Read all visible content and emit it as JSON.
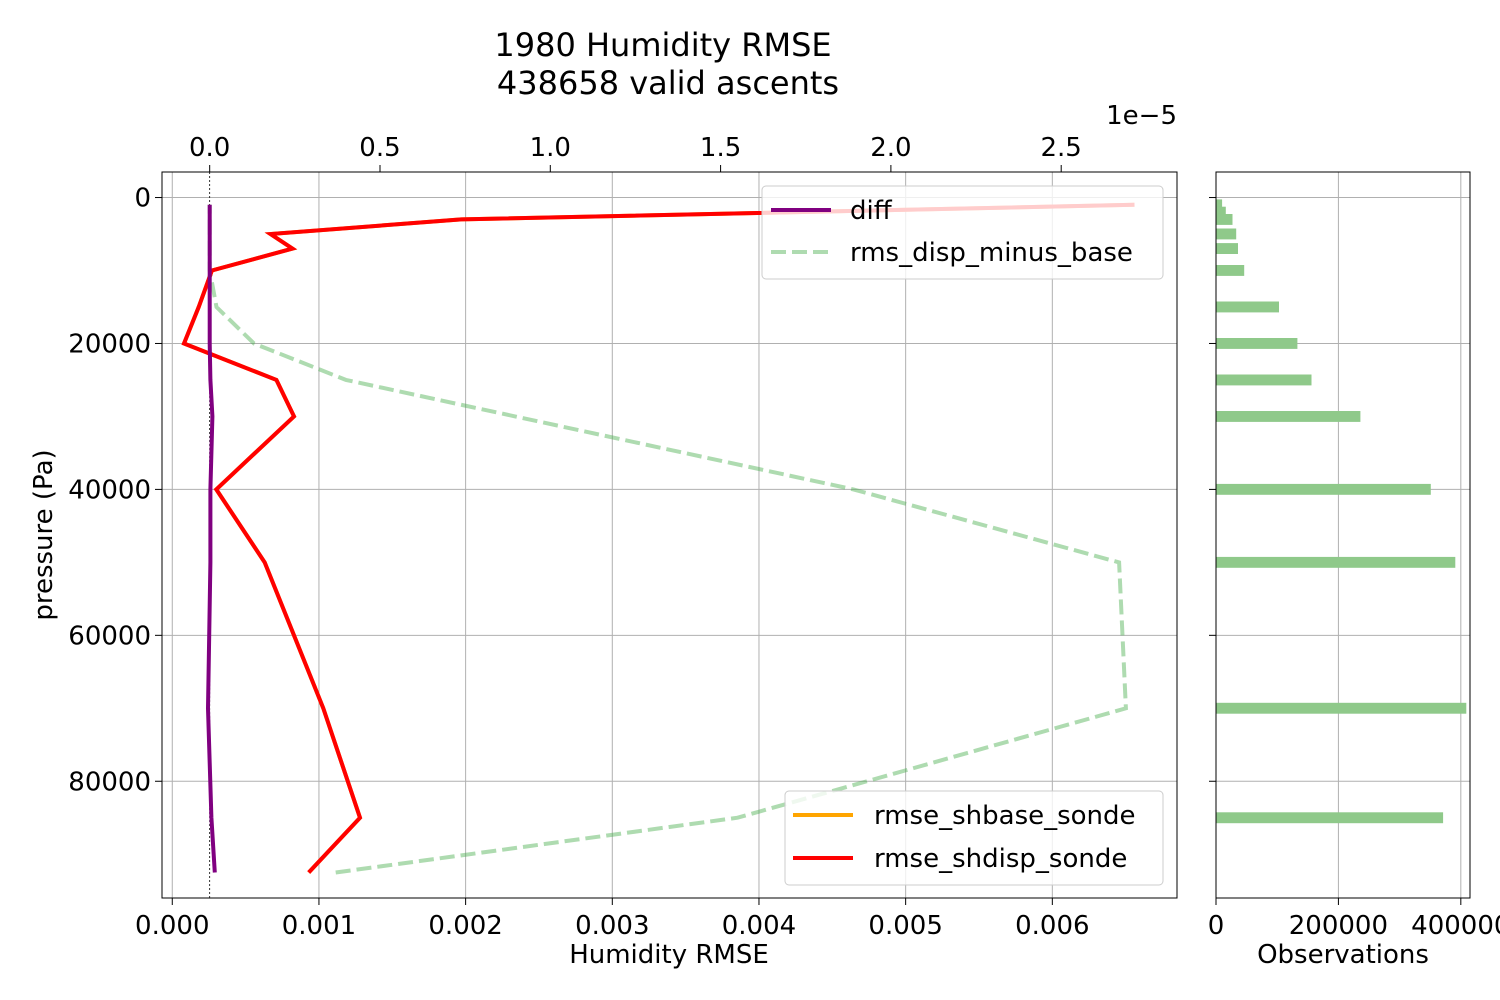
{
  "chart_data": [
    {
      "type": "line",
      "title_line1": "1980 Humidity RMSE",
      "title_line2": "438658 valid ascents",
      "xlabel": "Humidity RMSE",
      "ylabel": "pressure (Pa)",
      "xlim": [
        -7e-05,
        0.00685
      ],
      "ylim": [
        96000,
        -3500
      ],
      "y_inverted": true,
      "grid": true,
      "x_ticks": [
        0.0,
        0.001,
        0.002,
        0.003,
        0.004,
        0.005,
        0.006
      ],
      "x_tick_labels": [
        "0.000",
        "0.001",
        "0.002",
        "0.003",
        "0.004",
        "0.005",
        "0.006"
      ],
      "y_ticks": [
        0,
        20000,
        40000,
        60000,
        80000
      ],
      "y_tick_labels": [
        "0",
        "20000",
        "40000",
        "60000",
        "80000"
      ],
      "top_axis": {
        "label": "diff",
        "offset_text": "1e−5",
        "xlim": [
          -0.14,
          2.84
        ],
        "ticks": [
          0.0,
          0.5,
          1.0,
          1.5,
          2.0,
          2.5
        ],
        "tick_labels": [
          "0.0",
          "0.5",
          "1.0",
          "1.5",
          "2.0",
          "2.5"
        ]
      },
      "legend_upper_right": [
        "diff",
        "rms_disp_minus_base"
      ],
      "legend_lower_right": [
        "rmse_shbase_sonde",
        "rmse_shdisp_sonde"
      ],
      "series": [
        {
          "name": "rmse_shbase_sonde",
          "axis": "bottom",
          "color": "#ffa500",
          "style": "solid",
          "points": [
            [
              0.00093,
              92500
            ],
            [
              0.00128,
              85000
            ],
            [
              0.00103,
              70000
            ],
            [
              0.00063,
              50000
            ],
            [
              0.0003,
              40000
            ],
            [
              0.00083,
              30000
            ],
            [
              0.00071,
              25000
            ],
            [
              8e-05,
              20000
            ],
            [
              0.00018,
              15000
            ],
            [
              0.00027,
              10000
            ],
            [
              0.00082,
              7000
            ],
            [
              0.00067,
              5000
            ],
            [
              0.00197,
              3000
            ],
            [
              0.00656,
              1000
            ]
          ]
        },
        {
          "name": "rmse_shdisp_sonde",
          "axis": "bottom",
          "color": "#ff0000",
          "style": "solid",
          "points": [
            [
              0.00093,
              92500
            ],
            [
              0.00128,
              85000
            ],
            [
              0.00103,
              70000
            ],
            [
              0.00063,
              50000
            ],
            [
              0.0003,
              40000
            ],
            [
              0.00083,
              30000
            ],
            [
              0.00071,
              25000
            ],
            [
              8e-05,
              20000
            ],
            [
              0.00018,
              15000
            ],
            [
              0.00027,
              10000
            ],
            [
              0.00082,
              7000
            ],
            [
              0.00067,
              5000
            ],
            [
              0.00197,
              3000
            ],
            [
              0.00656,
              1000
            ]
          ]
        },
        {
          "name": "diff",
          "axis": "top",
          "color": "#800080",
          "style": "solid",
          "points": [
            [
              0.015,
              92500
            ],
            [
              0.005,
              85000
            ],
            [
              -0.005,
              70000
            ],
            [
              0.002,
              50000
            ],
            [
              0.002,
              40000
            ],
            [
              0.008,
              30000
            ],
            [
              0.002,
              25000
            ],
            [
              0.0,
              20000
            ],
            [
              0.0,
              15000
            ],
            [
              0.0,
              10000
            ],
            [
              0.0,
              7000
            ],
            [
              0.0,
              5000
            ],
            [
              0.0,
              3000
            ],
            [
              0.0,
              1000
            ]
          ]
        },
        {
          "name": "rms_disp_minus_base",
          "axis": "top",
          "color": "#4caf50",
          "style": "dashed",
          "opacity": 0.45,
          "points": [
            [
              0.37,
              92500
            ],
            [
              1.55,
              85000
            ],
            [
              2.69,
              70000
            ],
            [
              2.67,
              50000
            ],
            [
              1.89,
              40000
            ],
            [
              0.4,
              25000
            ],
            [
              0.13,
              20000
            ],
            [
              0.02,
              15000
            ],
            [
              0.0,
              10000
            ],
            [
              0.0,
              5000
            ],
            [
              0.0,
              1000
            ]
          ]
        }
      ]
    },
    {
      "type": "bar",
      "orientation": "horizontal",
      "xlabel": "Observations",
      "xlim": [
        0,
        415000
      ],
      "x_ticks": [
        0,
        200000,
        400000
      ],
      "x_tick_labels": [
        "0",
        "200000",
        "400000"
      ],
      "color": "#8fc98a",
      "bars": [
        {
          "pressure": 1000,
          "count": 10000
        },
        {
          "pressure": 2000,
          "count": 16000
        },
        {
          "pressure": 3000,
          "count": 27000
        },
        {
          "pressure": 5000,
          "count": 33000
        },
        {
          "pressure": 7000,
          "count": 36000
        },
        {
          "pressure": 10000,
          "count": 46000
        },
        {
          "pressure": 15000,
          "count": 103000
        },
        {
          "pressure": 20000,
          "count": 133000
        },
        {
          "pressure": 25000,
          "count": 156000
        },
        {
          "pressure": 30000,
          "count": 236000
        },
        {
          "pressure": 40000,
          "count": 351000
        },
        {
          "pressure": 50000,
          "count": 391000
        },
        {
          "pressure": 70000,
          "count": 409000
        },
        {
          "pressure": 85000,
          "count": 371000
        }
      ]
    }
  ]
}
